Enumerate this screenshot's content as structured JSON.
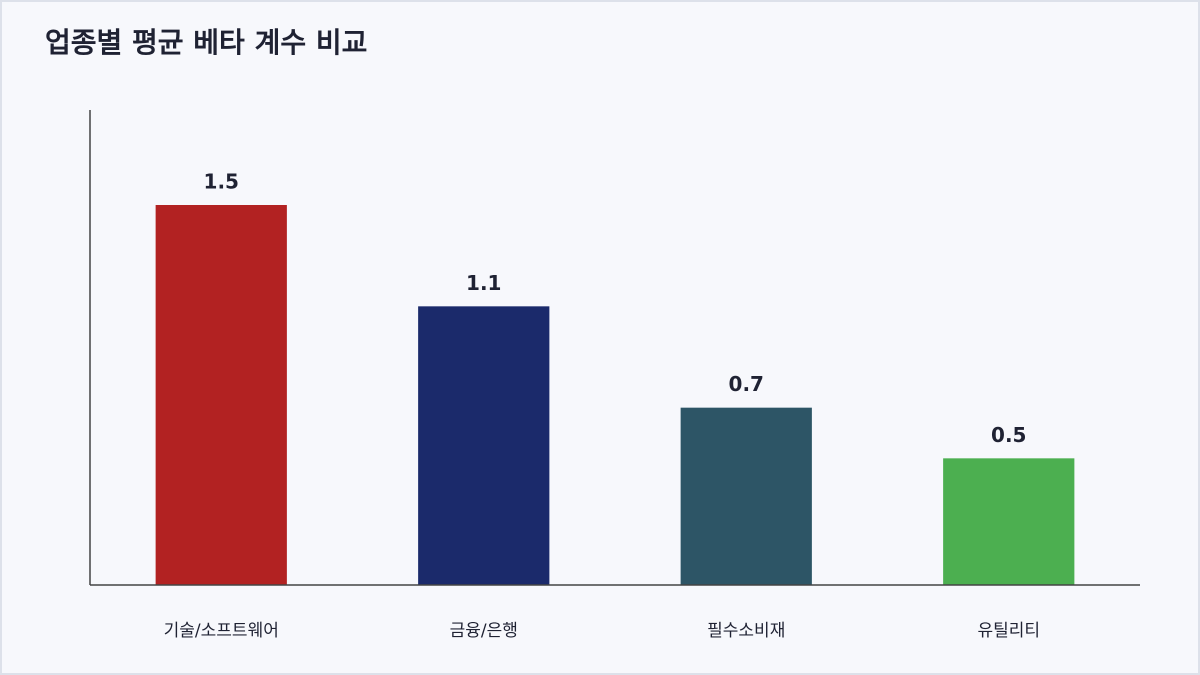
{
  "chart_data": {
    "type": "bar",
    "title": "업종별 평균 베타 계수 비교",
    "categories": [
      "기술/소프트웨어",
      "금융/은행",
      "필수소비재",
      "유틸리티"
    ],
    "values": [
      1.5,
      1.1,
      0.7,
      0.5
    ],
    "colors": [
      "#b22222",
      "#1b2a6b",
      "#2d5566",
      "#4caf50"
    ],
    "ylim": [
      0,
      1.875
    ]
  }
}
